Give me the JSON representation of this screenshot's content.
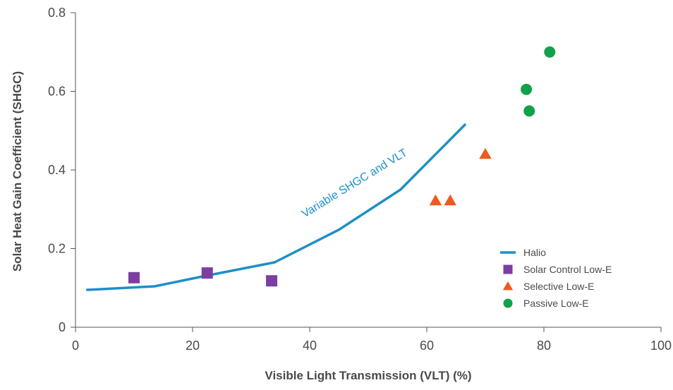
{
  "chart_data": {
    "type": "scatter",
    "xlabel": "Visible Light Transmission (VLT) (%)",
    "ylabel": "Solar Heat Gain Coefficient (SHGC)",
    "xlim": [
      0,
      100
    ],
    "ylim": [
      0,
      0.8
    ],
    "x_ticks": [
      "0",
      "20",
      "40",
      "60",
      "80",
      "100"
    ],
    "y_ticks": [
      "0",
      "0.2",
      "0.4",
      "0.6",
      "0.8"
    ],
    "grid": false,
    "legend_position": "bottom-right",
    "annotation": "Variable SHGC and VLT",
    "series": [
      {
        "name": "Halio",
        "kind": "line",
        "marker": "line",
        "color": "#1d8fc7",
        "points": [
          [
            2,
            0.095
          ],
          [
            13.5,
            0.104
          ],
          [
            22,
            0.13
          ],
          [
            34,
            0.165
          ],
          [
            45,
            0.248
          ],
          [
            55.5,
            0.35
          ],
          [
            66.5,
            0.515
          ]
        ]
      },
      {
        "name": "Solar Control Low-E",
        "kind": "scatter",
        "marker": "square",
        "color": "#7b3fa0",
        "points": [
          [
            10,
            0.126
          ],
          [
            22.5,
            0.138
          ],
          [
            33.5,
            0.118
          ]
        ]
      },
      {
        "name": "Selective Low-E",
        "kind": "scatter",
        "marker": "triangle",
        "color": "#f05a22",
        "points": [
          [
            61.5,
            0.322
          ],
          [
            64,
            0.322
          ],
          [
            70,
            0.44
          ]
        ]
      },
      {
        "name": "Passive Low-E",
        "kind": "scatter",
        "marker": "circle",
        "color": "#11a14a",
        "points": [
          [
            77,
            0.605
          ],
          [
            77.5,
            0.55
          ],
          [
            81,
            0.7
          ]
        ]
      }
    ]
  }
}
